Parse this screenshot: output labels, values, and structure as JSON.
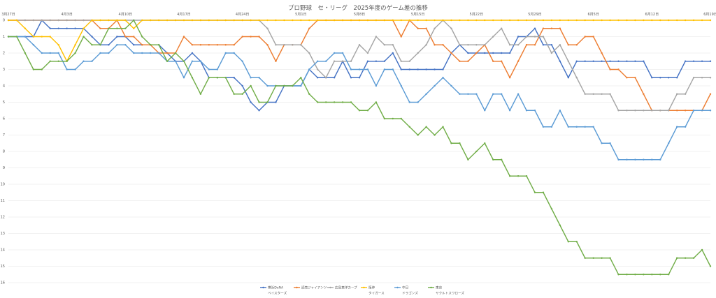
{
  "chart_data": {
    "type": "line",
    "title": "プロ野球　セ・リーグ　2025年度のゲーム差の推移",
    "xlabel": "",
    "ylabel": "",
    "y_reversed": true,
    "ylim": [
      0,
      16
    ],
    "yticks": [
      "0",
      "1",
      "2",
      "3",
      "4",
      "5",
      "6",
      "7",
      "8",
      "9",
      "10",
      "11",
      "12",
      "13",
      "14",
      "15",
      "16"
    ],
    "x_count": 85,
    "xtick_labels": [
      {
        "index": 0,
        "label": "3月27日"
      },
      {
        "index": 7,
        "label": "4月3日"
      },
      {
        "index": 14,
        "label": "4月10日"
      },
      {
        "index": 21,
        "label": "4月17日"
      },
      {
        "index": 28,
        "label": "4月24日"
      },
      {
        "index": 35,
        "label": "5月1日"
      },
      {
        "index": 42,
        "label": "5月8日"
      },
      {
        "index": 49,
        "label": "5月15日"
      },
      {
        "index": 56,
        "label": "5月22日"
      },
      {
        "index": 63,
        "label": "5月29日"
      },
      {
        "index": 70,
        "label": "6月5日"
      },
      {
        "index": 77,
        "label": "6月12日"
      },
      {
        "index": 84,
        "label": "6月19日"
      }
    ],
    "grid": true,
    "legend_position": "bottom",
    "series": [
      {
        "name": "横浜DeNA\nベイスターズ",
        "color": "#4472C4",
        "values": [
          1,
          1,
          1,
          1,
          0,
          0.5,
          0.5,
          0.5,
          0.5,
          0.5,
          1,
          1.5,
          1.5,
          1,
          1,
          1.5,
          1.5,
          1.5,
          1.5,
          2,
          2.5,
          2.5,
          2,
          2.5,
          3.5,
          3.5,
          3.5,
          3.5,
          4,
          5,
          5.5,
          5,
          5,
          4,
          4,
          4,
          3,
          3.5,
          3.5,
          3.5,
          2.5,
          3.5,
          3.5,
          2.5,
          2.5,
          2.5,
          2,
          3,
          3,
          3,
          3,
          3,
          3,
          2,
          1.5,
          2,
          2,
          2,
          2,
          2,
          2,
          1,
          1,
          0.5,
          1.5,
          1.5,
          2.5,
          3.5,
          2.5,
          2.5,
          2.5,
          2.5,
          2.5,
          2.5,
          2.5,
          2.5,
          2.5,
          3.5,
          3.5,
          3.5,
          3.5,
          2.5,
          2.5,
          2.5,
          2.5
        ]
      },
      {
        "name": "読売ジャイアンツ",
        "color": "#ED7D31",
        "values": [
          0,
          0,
          0,
          0,
          0,
          0,
          0,
          0,
          0,
          0,
          0,
          0.5,
          0.5,
          0,
          1,
          1,
          1.5,
          1.5,
          2,
          2,
          2,
          1,
          1.5,
          1.5,
          1.5,
          1.5,
          1.5,
          1.5,
          1,
          1,
          1,
          1.5,
          2.5,
          1.5,
          1.5,
          1.5,
          0.5,
          0,
          0,
          0,
          0,
          0,
          0,
          0,
          0,
          0,
          0,
          1,
          0,
          0.5,
          0.5,
          1.5,
          1.5,
          2,
          2.5,
          2.5,
          2,
          1.5,
          2.5,
          2.5,
          3.5,
          2.5,
          1.5,
          1.5,
          0.5,
          0.5,
          0.5,
          1.5,
          1.5,
          1,
          1,
          2,
          3,
          3,
          3.5,
          3.5,
          4.5,
          5.5,
          5.5,
          5.5,
          5.5,
          5.5,
          5.5,
          5.5,
          4.5
        ]
      },
      {
        "name": "広島東洋カープ",
        "color": "#A5A5A5",
        "values": [
          0,
          0,
          0,
          0,
          0,
          0,
          0,
          0,
          0,
          0,
          0,
          0,
          0,
          0,
          0,
          0,
          0,
          0,
          0,
          0,
          0,
          0,
          0,
          0,
          0,
          0,
          0,
          0,
          0,
          0,
          0,
          0.5,
          1.5,
          1.5,
          1.5,
          1.5,
          2,
          3,
          3.5,
          2.5,
          2.5,
          2.5,
          1.5,
          2,
          1,
          1.5,
          1.5,
          2.5,
          2.5,
          2,
          1.5,
          0.5,
          0,
          0.5,
          1.5,
          1.5,
          1.5,
          1.5,
          1,
          0.5,
          1.5,
          1.5,
          1,
          1,
          1,
          2,
          1.5,
          2.5,
          3.5,
          4.5,
          4.5,
          4.5,
          4.5,
          5.5,
          5.5,
          5.5,
          5.5,
          5.5,
          5.5,
          5.5,
          4.5,
          4.5,
          3.5,
          3.5,
          3.5
        ]
      },
      {
        "name": "阪神\nタイガース",
        "color": "#FFC000",
        "values": [
          0,
          0,
          0.5,
          1,
          1,
          1,
          1.5,
          2.5,
          1.5,
          0.5,
          0,
          0,
          0,
          0,
          0,
          0.5,
          0,
          0,
          0,
          0,
          0,
          0,
          0,
          0,
          0,
          0,
          0,
          0,
          0,
          0,
          0,
          0,
          0,
          0,
          0,
          0,
          0,
          0,
          0,
          0,
          0,
          0,
          0,
          0,
          0,
          0,
          0,
          0,
          0,
          0,
          0,
          0,
          0,
          0,
          0,
          0,
          0,
          0,
          0,
          0,
          0,
          0,
          0,
          0,
          0,
          0,
          0,
          0,
          0,
          0,
          0,
          0,
          0,
          0,
          0,
          0,
          0,
          0,
          0,
          0,
          0,
          0,
          0,
          0,
          0
        ]
      },
      {
        "name": "中日\nドラゴンズ",
        "color": "#5B9BD5",
        "values": [
          1,
          1,
          1,
          1.5,
          2,
          2,
          2,
          3,
          3,
          2.5,
          2.5,
          2,
          2,
          1.5,
          1.5,
          2,
          2,
          2,
          2,
          2.5,
          2.5,
          3.5,
          2.5,
          2.5,
          3,
          3,
          2,
          2,
          2.5,
          3.5,
          3.5,
          4,
          4,
          4,
          4,
          4,
          3,
          2.5,
          2.5,
          2,
          2,
          3,
          3,
          3,
          4,
          3,
          3,
          4,
          5,
          5,
          4.5,
          4,
          3.5,
          4,
          4.5,
          4.5,
          4.5,
          5.5,
          4.5,
          4.5,
          5.5,
          4.5,
          5.5,
          5.5,
          6.5,
          6.5,
          5.5,
          6.5,
          6.5,
          6.5,
          6.5,
          7.5,
          7.5,
          8.5,
          8.5,
          8.5,
          8.5,
          8.5,
          8.5,
          7.5,
          6.5,
          6.5,
          5.5,
          5.5,
          5.5
        ]
      },
      {
        "name": "東京\nヤクルトスワローズ",
        "color": "#70AD47",
        "values": [
          1,
          1,
          2,
          3,
          3,
          2.5,
          2.5,
          2.5,
          2,
          1,
          1.5,
          1.5,
          0.5,
          0.5,
          0.5,
          0,
          1,
          1.5,
          1.5,
          2.5,
          2,
          2.5,
          3.5,
          4.5,
          3.5,
          3.5,
          3.5,
          4.5,
          4.5,
          4,
          5,
          5,
          4,
          4,
          4,
          3.5,
          4.5,
          5,
          5,
          5,
          5,
          5,
          5.5,
          5.5,
          5,
          6,
          6,
          6,
          6.5,
          7,
          6.5,
          7,
          6.5,
          7.5,
          7.5,
          8.5,
          8,
          7.5,
          8.5,
          8.5,
          9.5,
          9.5,
          9.5,
          10.5,
          10.5,
          11.5,
          12.5,
          13.5,
          13.5,
          14.5,
          14.5,
          14.5,
          14.5,
          15.5,
          15.5,
          15.5,
          15.5,
          15.5,
          15.5,
          15.5,
          14.5,
          14.5,
          14.5,
          14,
          15
        ]
      }
    ]
  }
}
